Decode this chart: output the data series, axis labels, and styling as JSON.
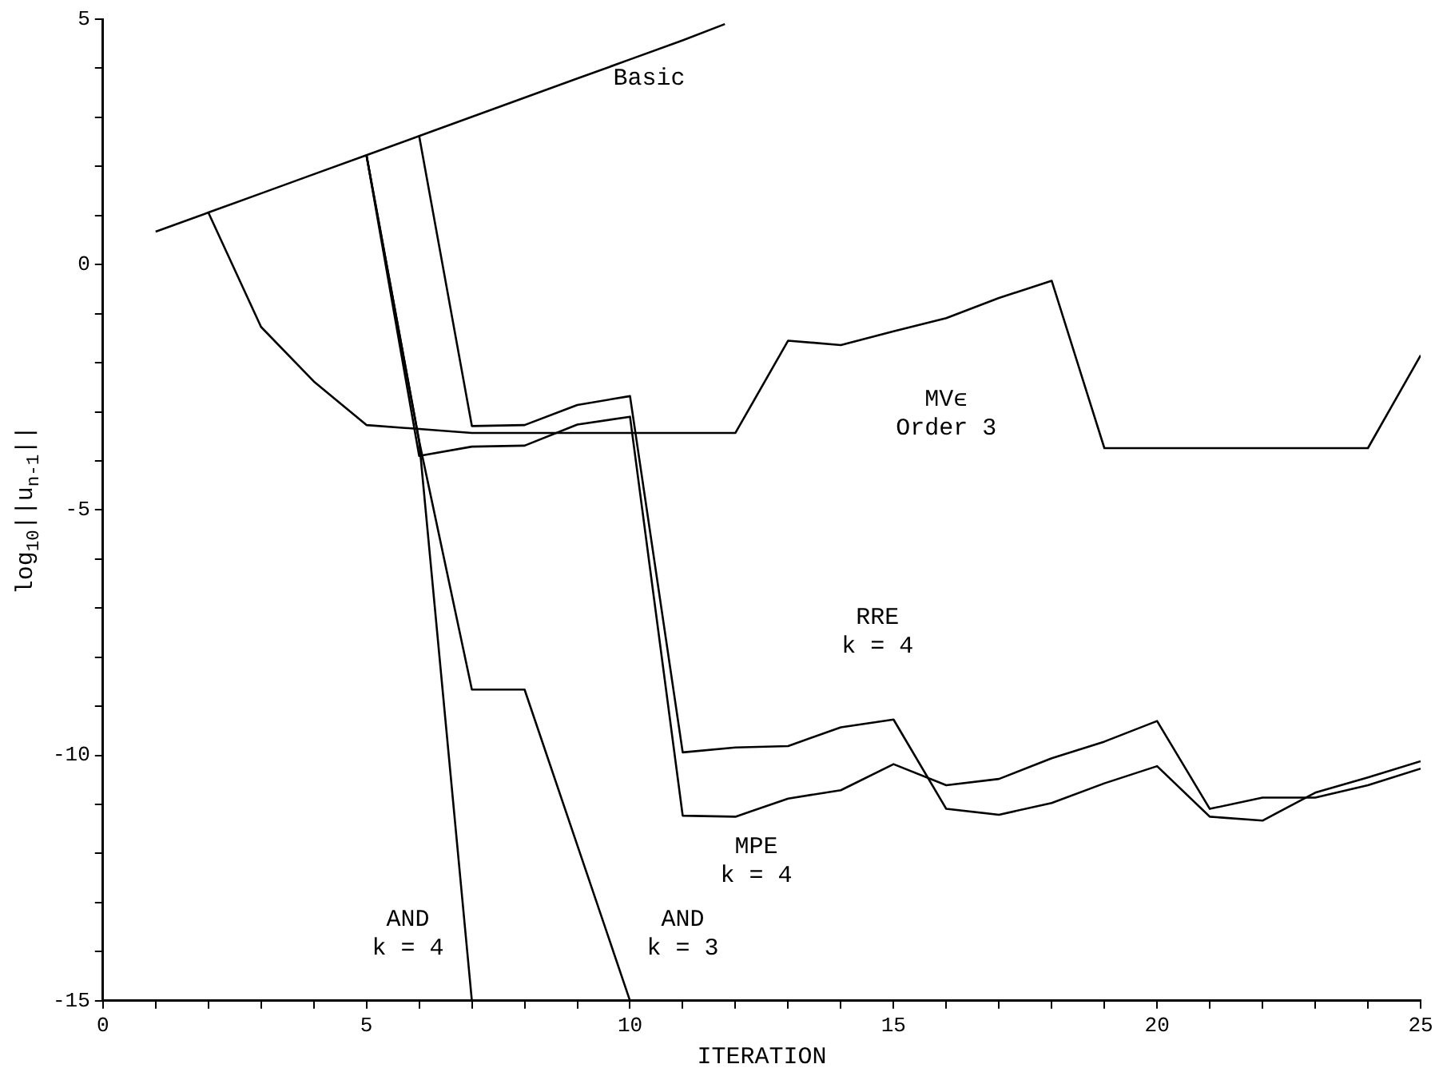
{
  "chart_data": {
    "type": "line",
    "xlabel": "ITERATION",
    "ylabel": "log$_{10}$||u$_{n-1}$||",
    "xlim": [
      0,
      25
    ],
    "ylim": [
      -15,
      5
    ],
    "xticks": [
      0,
      {
        "value": 1,
        "label": null
      },
      {
        "value": 2,
        "label": null
      },
      {
        "value": 3,
        "label": null
      },
      {
        "value": 4,
        "label": null
      },
      5,
      {
        "value": 6,
        "label": null
      },
      {
        "value": 7,
        "label": null
      },
      {
        "value": 8,
        "label": null
      },
      {
        "value": 9,
        "label": null
      },
      10,
      {
        "value": 11,
        "label": null
      },
      {
        "value": 12,
        "label": null
      },
      {
        "value": 13,
        "label": null
      },
      {
        "value": 14,
        "label": null
      },
      15,
      {
        "value": 16,
        "label": null
      },
      {
        "value": 17,
        "label": null
      },
      {
        "value": 18,
        "label": null
      },
      {
        "value": 19,
        "label": null
      },
      20,
      {
        "value": 21,
        "label": null
      },
      {
        "value": 22,
        "label": null
      },
      {
        "value": 23,
        "label": null
      },
      {
        "value": 24,
        "label": null
      },
      25
    ],
    "yticks": [
      -15,
      {
        "value": -14,
        "label": null
      },
      {
        "value": -13,
        "label": null
      },
      {
        "value": -12,
        "label": null
      },
      {
        "value": -11,
        "label": null
      },
      -10,
      {
        "value": -9,
        "label": null
      },
      {
        "value": -8,
        "label": null
      },
      {
        "value": -7,
        "label": null
      },
      {
        "value": -6,
        "label": null
      },
      -5,
      {
        "value": -4,
        "label": null
      },
      {
        "value": -3,
        "label": null
      },
      {
        "value": -2,
        "label": null
      },
      {
        "value": -1,
        "label": null
      },
      0,
      {
        "value": 1,
        "label": null
      },
      {
        "value": 2,
        "label": null
      },
      {
        "value": 3,
        "label": null
      },
      {
        "value": 4,
        "label": null
      },
      5
    ],
    "grid": false,
    "legend": false,
    "marker": "none",
    "line_style": "solid",
    "series": [
      {
        "name": "Basic",
        "color": "#000000",
        "x": [
          1,
          2,
          3,
          4,
          5,
          6,
          7,
          8,
          9,
          10,
          11,
          11.8
        ],
        "values": [
          0.67,
          1.06,
          1.45,
          1.84,
          2.23,
          2.62,
          3.01,
          3.4,
          3.79,
          4.18,
          4.57,
          4.9
        ]
      },
      {
        "name": "MVϵ\nOrder 3",
        "color": "#000000",
        "x": [
          2,
          3,
          4,
          5,
          6,
          7,
          8,
          9,
          10,
          11,
          12,
          13,
          14,
          15,
          16,
          17,
          18,
          19,
          20,
          21,
          22,
          23,
          24,
          25
        ],
        "values": [
          1.06,
          -1.27,
          -2.38,
          -3.27,
          -3.35,
          -3.43,
          -3.43,
          -3.43,
          -3.43,
          -3.43,
          -3.43,
          -1.55,
          -1.64,
          -1.36,
          -1.09,
          -0.68,
          -0.33,
          -3.74,
          -3.74,
          -3.74,
          -3.74,
          -3.74,
          -3.74,
          -1.85
        ]
      },
      {
        "name": "RRE\nk = 4",
        "color": "#000000",
        "x": [
          6,
          7,
          8,
          9,
          10,
          11,
          12,
          13,
          14,
          15,
          16,
          17,
          18,
          19,
          20,
          21,
          22,
          23,
          24,
          25
        ],
        "values": [
          2.62,
          -3.29,
          -3.27,
          -2.86,
          -2.68,
          -9.94,
          -9.84,
          -9.81,
          -9.43,
          -9.27,
          -11.09,
          -11.21,
          -10.97,
          -10.57,
          -10.22,
          -11.25,
          -11.33,
          -10.76,
          -10.45,
          -10.12
        ]
      },
      {
        "name": "MPE\nk = 4",
        "color": "#000000",
        "x": [
          5,
          6,
          7,
          8,
          9,
          10,
          11,
          12,
          13,
          14,
          15,
          16,
          17,
          18,
          19,
          20,
          21,
          22,
          23,
          24,
          25
        ],
        "values": [
          2.23,
          -3.9,
          -3.71,
          -3.69,
          -3.26,
          -3.1,
          -11.23,
          -11.25,
          -10.88,
          -10.71,
          -10.18,
          -10.61,
          -10.48,
          -10.06,
          -9.72,
          -9.3,
          -11.09,
          -10.86,
          -10.86,
          -10.61,
          -10.27
        ]
      },
      {
        "name": "AND\nk = 4",
        "color": "#000000",
        "x": [
          5,
          6,
          7
        ],
        "values": [
          2.23,
          -3.6,
          -15
        ]
      },
      {
        "name": "AND\nk = 3",
        "color": "#000000",
        "x": [
          5,
          6,
          7,
          8,
          10
        ],
        "values": [
          2.23,
          -3.6,
          -8.66,
          -8.66,
          -15
        ]
      }
    ]
  }
}
